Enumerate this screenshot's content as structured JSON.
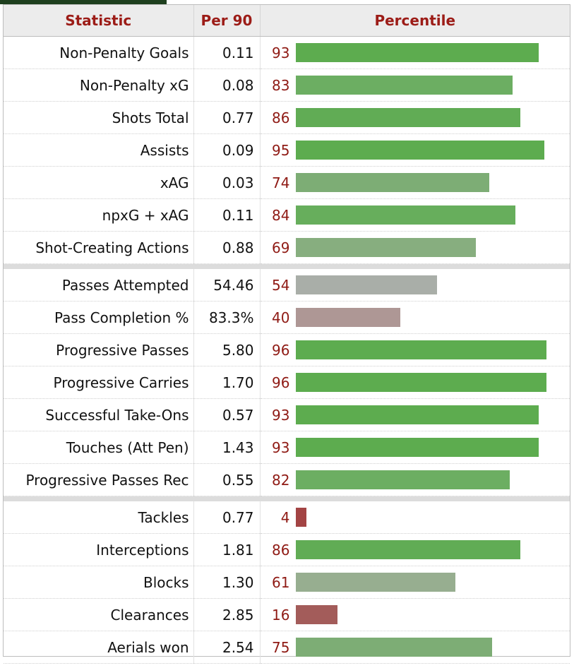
{
  "header": {
    "statistic_label": "Statistic",
    "per90_label": "Per 90",
    "percentile_label": "Percentile"
  },
  "groups": [
    {
      "rows": [
        {
          "stat": "Non-Penalty Goals",
          "per90": "0.11",
          "pct": 93,
          "color": "#5dac4f"
        },
        {
          "stat": "Non-Penalty xG",
          "per90": "0.08",
          "pct": 83,
          "color": "#6cae62"
        },
        {
          "stat": "Shots Total",
          "per90": "0.77",
          "pct": 86,
          "color": "#61ac55"
        },
        {
          "stat": "Assists",
          "per90": "0.09",
          "pct": 95,
          "color": "#5dac4f"
        },
        {
          "stat": "xAG",
          "per90": "0.03",
          "pct": 74,
          "color": "#7dad75"
        },
        {
          "stat": "npxG + xAG",
          "per90": "0.11",
          "pct": 84,
          "color": "#67ae5c"
        },
        {
          "stat": "Shot-Creating Actions",
          "per90": "0.88",
          "pct": 69,
          "color": "#87ae7f"
        }
      ]
    },
    {
      "rows": [
        {
          "stat": "Passes Attempted",
          "per90": "54.46",
          "pct": 54,
          "color": "#a9aea8"
        },
        {
          "stat": "Pass Completion %",
          "per90": "83.3%",
          "pct": 40,
          "color": "#ae9795"
        },
        {
          "stat": "Progressive Passes",
          "per90": "5.80",
          "pct": 96,
          "color": "#5dac4f"
        },
        {
          "stat": "Progressive Carries",
          "per90": "1.70",
          "pct": 96,
          "color": "#5dac4f"
        },
        {
          "stat": "Successful Take-Ons",
          "per90": "0.57",
          "pct": 93,
          "color": "#5dac4f"
        },
        {
          "stat": "Touches (Att Pen)",
          "per90": "1.43",
          "pct": 93,
          "color": "#5dac4f"
        },
        {
          "stat": "Progressive Passes Rec",
          "per90": "0.55",
          "pct": 82,
          "color": "#6cae62"
        }
      ]
    },
    {
      "rows": [
        {
          "stat": "Tackles",
          "per90": "0.77",
          "pct": 4,
          "color": "#a34444"
        },
        {
          "stat": "Interceptions",
          "per90": "1.81",
          "pct": 86,
          "color": "#61ac55"
        },
        {
          "stat": "Blocks",
          "per90": "1.30",
          "pct": 61,
          "color": "#97ae90"
        },
        {
          "stat": "Clearances",
          "per90": "2.85",
          "pct": 16,
          "color": "#a35c5a"
        },
        {
          "stat": "Aerials won",
          "per90": "2.54",
          "pct": 75,
          "color": "#7dad75"
        }
      ]
    }
  ]
}
